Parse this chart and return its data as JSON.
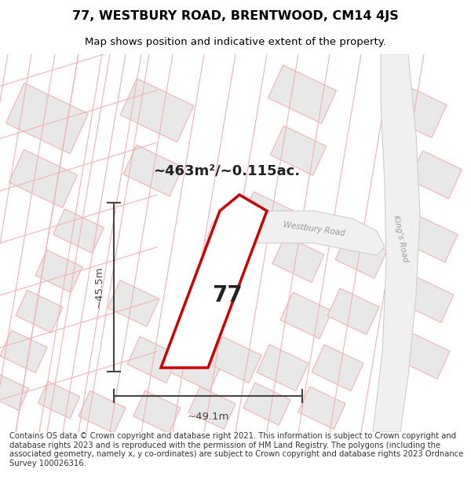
{
  "title": "77, WESTBURY ROAD, BRENTWOOD, CM14 4JS",
  "subtitle": "Map shows position and indicative extent of the property.",
  "area_label": "~463m²/~0.115ac.",
  "plot_number": "77",
  "dim_width": "~49.1m",
  "dim_height": "~45.5m",
  "road_label_1": "Westbury Road",
  "road_label_2": "King's Road",
  "footer": "Contains OS data © Crown copyright and database right 2021. This information is subject to Crown copyright and database rights 2023 and is reproduced with the permission of HM Land Registry. The polygons (including the associated geometry, namely x, y co-ordinates) are subject to Crown copyright and database rights 2023 Ordnance Survey 100026316.",
  "bg_color": "#ffffff",
  "map_bg": "#ffffff",
  "plot_edge_color": "#cc0000",
  "other_plot_edge": "#f5b0b0",
  "other_plot_fill": "#e8e8e8",
  "road_fill": "#f0f0f0",
  "road_edge": "#cccccc",
  "title_color": "#000000",
  "footer_color": "#333333",
  "footer_fontsize": 7.2,
  "title_fontsize": 11.5,
  "subtitle_fontsize": 9.5,
  "dim_color": "#444444",
  "label_color": "#222222",
  "road_text_color": "#999999"
}
